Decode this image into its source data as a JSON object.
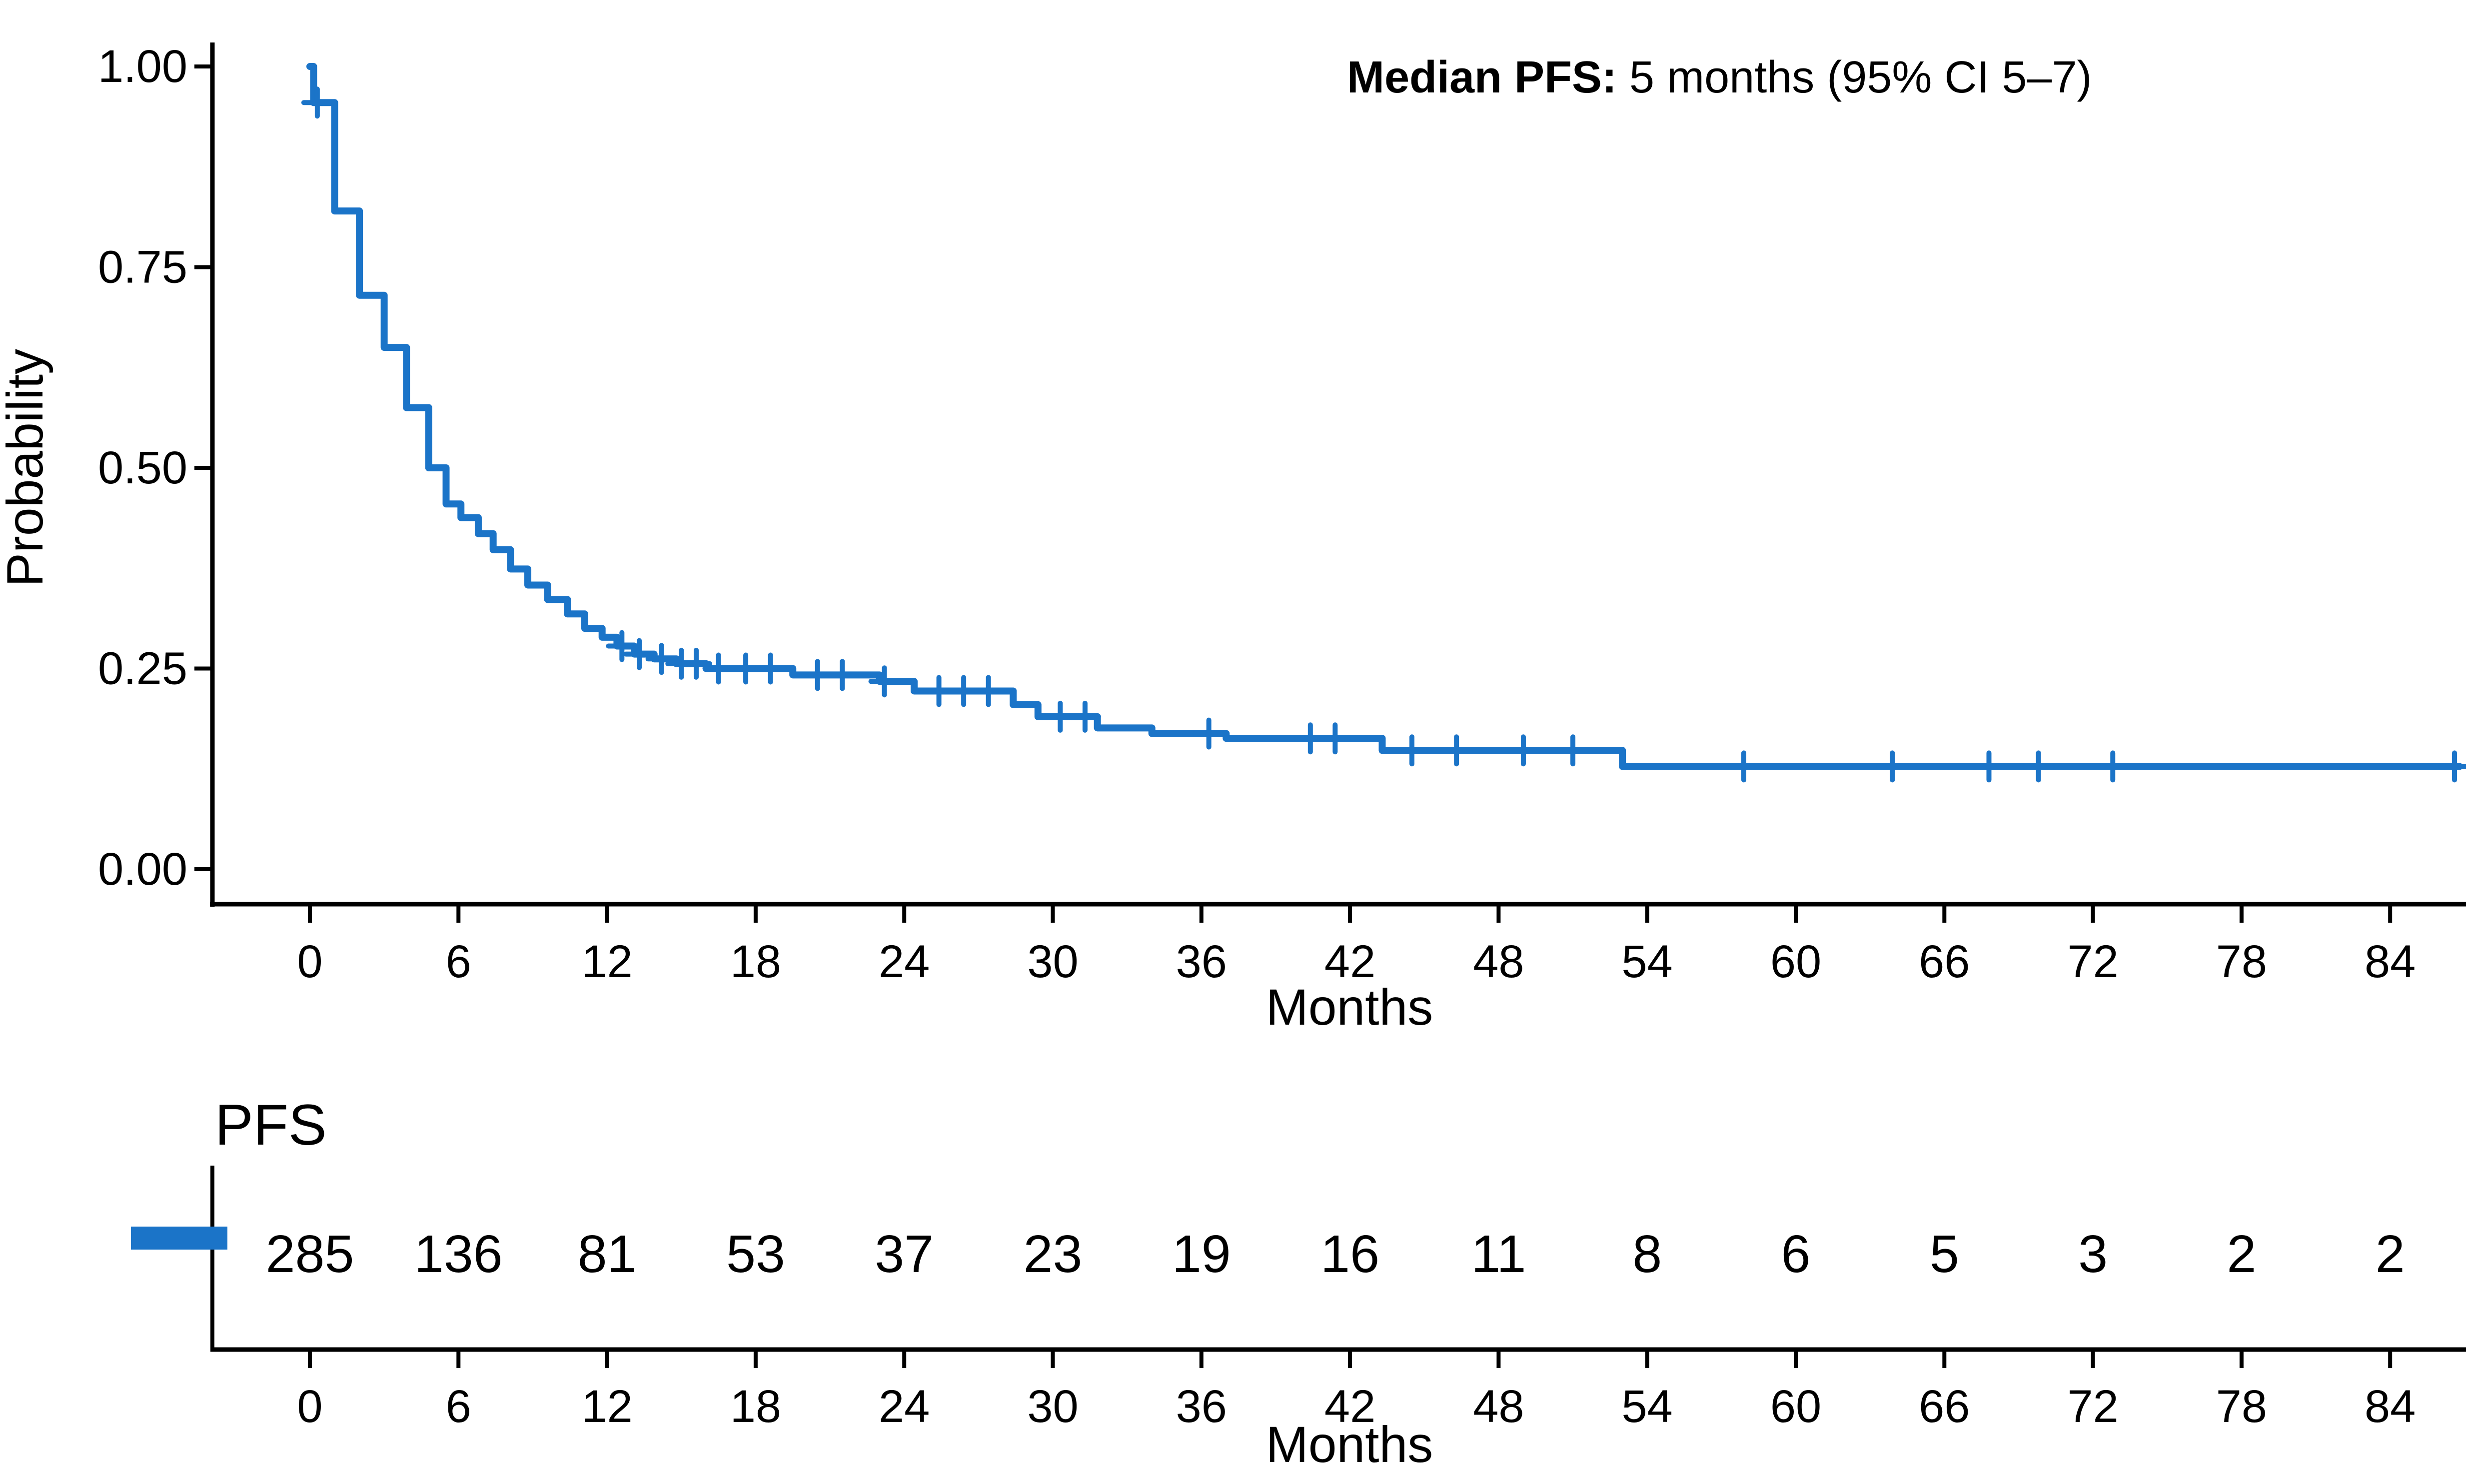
{
  "annotation": {
    "label": "Median PFS:",
    "value": " 5 months (95% CI 5–7)"
  },
  "colors": {
    "curve": "#1B74C8",
    "axis": "#000000",
    "background": "#FFFFFF"
  },
  "chart_data": {
    "type": "line",
    "subtype": "kaplan-meier-step-curve",
    "title": "",
    "xlabel": "Months",
    "ylabel": "Probability",
    "xlim": [
      0,
      87
    ],
    "ylim": [
      0,
      1
    ],
    "grid": false,
    "x_ticks": [
      0,
      6,
      12,
      18,
      24,
      30,
      36,
      42,
      48,
      54,
      60,
      66,
      72,
      78,
      84
    ],
    "y_ticks": [
      0,
      0.25,
      0.5,
      0.75,
      1
    ],
    "y_tick_labels": [
      "0.00",
      "0.25",
      "0.50",
      "0.75",
      "1.00"
    ],
    "series": [
      {
        "name": "PFS",
        "color": "#1B74C8",
        "start": {
          "t": 0,
          "p": 1.0
        },
        "end_time": 86.8,
        "steps": [
          [
            0.15,
            0.955
          ],
          [
            1.0,
            0.82
          ],
          [
            2.0,
            0.715
          ],
          [
            3.0,
            0.65
          ],
          [
            3.9,
            0.575
          ],
          [
            4.8,
            0.5
          ],
          [
            5.5,
            0.455
          ],
          [
            6.1,
            0.438
          ],
          [
            6.8,
            0.418
          ],
          [
            7.4,
            0.398
          ],
          [
            8.1,
            0.374
          ],
          [
            8.8,
            0.354
          ],
          [
            9.6,
            0.336
          ],
          [
            10.4,
            0.318
          ],
          [
            11.1,
            0.3
          ],
          [
            11.8,
            0.289
          ],
          [
            12.4,
            0.278
          ],
          [
            13.1,
            0.268
          ],
          [
            13.9,
            0.262
          ],
          [
            14.8,
            0.256
          ],
          [
            16.0,
            0.25
          ],
          [
            19.5,
            0.242
          ],
          [
            23.0,
            0.234
          ],
          [
            24.4,
            0.222
          ],
          [
            28.4,
            0.205
          ],
          [
            29.4,
            0.19
          ],
          [
            31.8,
            0.176
          ],
          [
            34.0,
            0.169
          ],
          [
            37.0,
            0.163
          ],
          [
            43.3,
            0.148
          ],
          [
            53.0,
            0.128
          ]
        ],
        "censor_times": [
          0.3,
          12.6,
          13.3,
          14.2,
          15.0,
          15.6,
          16.5,
          17.6,
          18.6,
          20.5,
          21.5,
          23.2,
          25.4,
          26.4,
          27.4,
          30.3,
          31.3,
          36.3,
          40.4,
          41.4,
          44.5,
          46.3,
          49.0,
          51.0,
          57.9,
          63.9,
          67.8,
          69.8,
          72.8,
          86.6
        ],
        "median": {
          "value": 5,
          "unit": "months",
          "ci_low": 5,
          "ci_high": 7
        }
      }
    ]
  },
  "risk_table": {
    "title": "PFS",
    "xlabel": "Months",
    "times": [
      0,
      6,
      12,
      18,
      24,
      30,
      36,
      42,
      48,
      54,
      60,
      66,
      72,
      78,
      84
    ],
    "counts": [
      "285",
      "136",
      "81",
      "53",
      "37",
      "23",
      "19",
      "16",
      "11",
      "8",
      "6",
      "5",
      "3",
      "2",
      "2"
    ]
  }
}
